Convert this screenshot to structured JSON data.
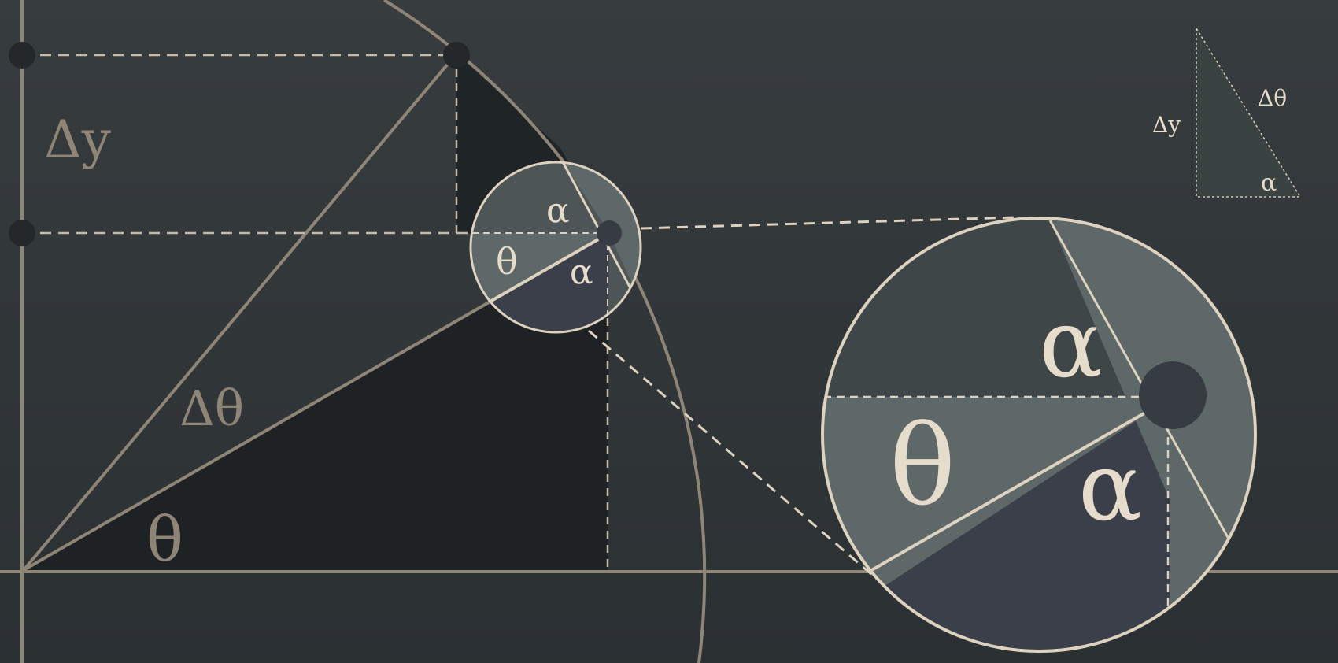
{
  "labels": {
    "delta_y": "Δy",
    "delta_theta": "Δθ",
    "theta": "θ",
    "alpha": "α"
  },
  "colors": {
    "background_top": "#363b3e",
    "background_bottom": "#2b3033",
    "line": "#8f8577",
    "light_line": "#ddd2c0",
    "dot": "#24282b",
    "dark_triangle": "#1f2225",
    "mid_fill": "#3a3f4a",
    "light_fill": "#5f6868",
    "text": "#8f8577",
    "text_light": "#e6dccb"
  }
}
